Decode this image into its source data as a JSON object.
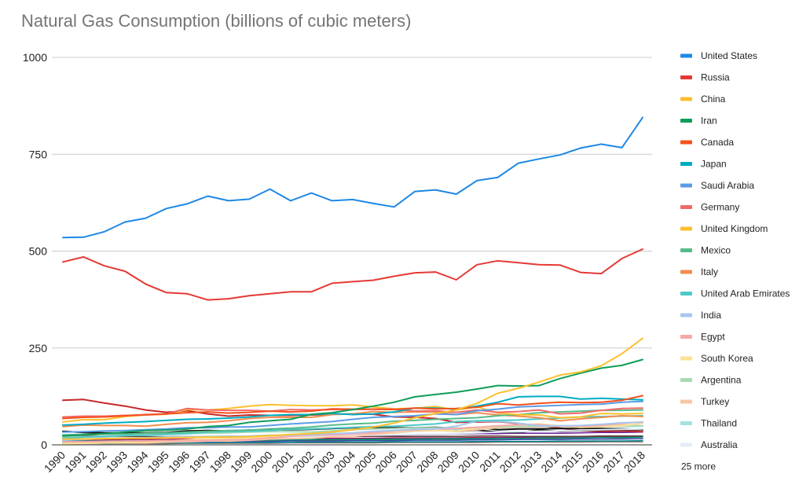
{
  "chart_data": {
    "type": "line",
    "title": "Natural Gas Consumption (billions of cubic meters)",
    "xlabel": "",
    "ylabel": "",
    "ylim": [
      0,
      1000
    ],
    "yticks": [
      "0",
      "250",
      "500",
      "750",
      "1000"
    ],
    "x": [
      "1990",
      "1991",
      "1992",
      "1993",
      "1994",
      "1995",
      "1996",
      "1997",
      "1998",
      "1999",
      "2000",
      "2001",
      "2002",
      "2003",
      "2004",
      "2005",
      "2006",
      "2007",
      "2008",
      "2009",
      "2010",
      "2011",
      "2012",
      "2013",
      "2014",
      "2015",
      "2016",
      "2017",
      "2018"
    ],
    "grid": true,
    "legend_position": "right",
    "more_label": "25 more",
    "series": [
      {
        "name": "United States",
        "color": "#1e88e5",
        "width": 2,
        "values": [
          535,
          536,
          550,
          575,
          585,
          610,
          622,
          642,
          630,
          634,
          660,
          630,
          650,
          630,
          633,
          623,
          614,
          654,
          658,
          647,
          682,
          690,
          727,
          738,
          748,
          766,
          776,
          767,
          845
        ]
      },
      {
        "name": "Russia",
        "color": "#e53935",
        "width": 2,
        "values": [
          472,
          485,
          462,
          448,
          415,
          393,
          390,
          374,
          377,
          385,
          390,
          395,
          395,
          417,
          421,
          425,
          435,
          444,
          446,
          426,
          465,
          475,
          470,
          465,
          464,
          445,
          442,
          481,
          505
        ]
      },
      {
        "name": "China",
        "color": "#fbc02d",
        "width": 2,
        "values": [
          15,
          15,
          16,
          17,
          17,
          18,
          19,
          20,
          20,
          21,
          24,
          27,
          29,
          33,
          39,
          46,
          56,
          70,
          81,
          90,
          107,
          133,
          146,
          162,
          180,
          188,
          204,
          235,
          275
        ]
      },
      {
        "name": "Iran",
        "color": "#0f9d58",
        "width": 2,
        "values": [
          23,
          26,
          29,
          33,
          37,
          38,
          41,
          47,
          50,
          58,
          62,
          66,
          79,
          83,
          91,
          100,
          110,
          124,
          130,
          136,
          144,
          153,
          152,
          153,
          171,
          185,
          198,
          205,
          220
        ]
      },
      {
        "name": "Canada",
        "color": "#f4511e",
        "width": 2,
        "values": [
          68,
          71,
          72,
          75,
          78,
          80,
          83,
          85,
          82,
          84,
          87,
          85,
          87,
          93,
          92,
          92,
          91,
          95,
          93,
          94,
          97,
          106,
          103,
          107,
          110,
          109,
          110,
          115,
          127
        ]
      },
      {
        "name": "Japan",
        "color": "#00acc1",
        "width": 2,
        "values": [
          51,
          53,
          56,
          58,
          60,
          63,
          66,
          67,
          69,
          72,
          76,
          78,
          78,
          81,
          78,
          80,
          85,
          95,
          95,
          92,
          100,
          110,
          124,
          125,
          125,
          118,
          120,
          118,
          116
        ]
      },
      {
        "name": "Saudi Arabia",
        "color": "#5c9ce6",
        "width": 2,
        "values": [
          33,
          34,
          36,
          37,
          39,
          41,
          44,
          44,
          46,
          46,
          50,
          54,
          57,
          60,
          66,
          71,
          73,
          75,
          80,
          78,
          88,
          92,
          98,
          100,
          102,
          104,
          105,
          110,
          112
        ]
      },
      {
        "name": "Germany",
        "color": "#f06a6a",
        "width": 2,
        "values": [
          72,
          74,
          74,
          76,
          77,
          80,
          94,
          90,
          89,
          89,
          87,
          91,
          90,
          91,
          91,
          92,
          92,
          87,
          88,
          84,
          90,
          84,
          86,
          90,
          80,
          82,
          89,
          94,
          95
        ]
      },
      {
        "name": "United Kingdom",
        "color": "#fbc02d",
        "width": 2,
        "values": [
          59,
          65,
          65,
          73,
          77,
          79,
          91,
          90,
          94,
          100,
          104,
          102,
          101,
          101,
          103,
          98,
          93,
          95,
          99,
          90,
          98,
          82,
          78,
          77,
          70,
          72,
          81,
          80,
          81
        ]
      },
      {
        "name": "Mexico",
        "color": "#57bb8a",
        "width": 2,
        "values": [
          26,
          27,
          28,
          28,
          30,
          31,
          33,
          35,
          37,
          38,
          41,
          43,
          46,
          51,
          54,
          56,
          61,
          63,
          66,
          68,
          70,
          75,
          78,
          83,
          85,
          87,
          89,
          89,
          90
        ]
      },
      {
        "name": "Italy",
        "color": "#f18d4e",
        "width": 2,
        "values": [
          47,
          51,
          50,
          50,
          48,
          53,
          57,
          58,
          62,
          68,
          71,
          71,
          71,
          78,
          80,
          86,
          84,
          85,
          85,
          78,
          83,
          77,
          74,
          70,
          62,
          67,
          71,
          75,
          73
        ]
      },
      {
        "name": "United Arab Emirates",
        "color": "#4dc9c9",
        "width": 2,
        "values": [
          17,
          20,
          22,
          24,
          25,
          27,
          29,
          33,
          34,
          35,
          37,
          40,
          41,
          43,
          45,
          47,
          48,
          51,
          54,
          60,
          62,
          63,
          64,
          67,
          69,
          72,
          73,
          74,
          75
        ]
      },
      {
        "name": "India",
        "color": "#a7c7f0",
        "width": 2,
        "values": [
          12,
          14,
          16,
          17,
          18,
          20,
          21,
          22,
          22,
          23,
          25,
          25,
          27,
          29,
          31,
          35,
          37,
          40,
          41,
          48,
          61,
          61,
          56,
          49,
          49,
          50,
          53,
          57,
          58
        ]
      },
      {
        "name": "Egypt",
        "color": "#f7a8a8",
        "width": 2,
        "values": [
          8,
          8,
          9,
          10,
          10,
          11,
          11,
          12,
          13,
          14,
          18,
          22,
          25,
          26,
          28,
          31,
          36,
          38,
          41,
          42,
          45,
          49,
          52,
          52,
          48,
          48,
          50,
          56,
          59
        ]
      },
      {
        "name": "South Korea",
        "color": "#fde293",
        "width": 2,
        "values": [
          3,
          4,
          5,
          6,
          7,
          10,
          13,
          16,
          16,
          18,
          20,
          22,
          25,
          27,
          31,
          33,
          34,
          36,
          38,
          35,
          44,
          48,
          52,
          54,
          49,
          45,
          47,
          49,
          56
        ]
      },
      {
        "name": "Argentina",
        "color": "#a8dab5",
        "width": 2,
        "values": [
          20,
          21,
          23,
          24,
          26,
          28,
          29,
          30,
          31,
          33,
          34,
          34,
          33,
          36,
          39,
          41,
          42,
          44,
          44,
          43,
          45,
          46,
          47,
          48,
          48,
          48,
          49,
          49,
          49
        ]
      },
      {
        "name": "Turkey",
        "color": "#fbc6a3",
        "width": 2,
        "values": [
          3,
          4,
          5,
          5,
          5,
          7,
          8,
          10,
          10,
          12,
          15,
          16,
          17,
          21,
          22,
          27,
          31,
          36,
          37,
          35,
          39,
          44,
          46,
          46,
          49,
          48,
          47,
          53,
          49
        ]
      },
      {
        "name": "Thailand",
        "color": "#a2e1e1",
        "width": 2,
        "values": [
          6,
          7,
          8,
          9,
          10,
          11,
          12,
          13,
          14,
          15,
          21,
          23,
          24,
          26,
          28,
          30,
          31,
          35,
          37,
          38,
          42,
          44,
          47,
          47,
          48,
          48,
          48,
          47,
          48
        ]
      },
      {
        "name": "Australia",
        "color": "#e3edfa",
        "width": 2,
        "values": [
          17,
          17,
          17,
          18,
          18,
          19,
          20,
          20,
          21,
          21,
          21,
          21,
          22,
          23,
          24,
          25,
          26,
          27,
          28,
          29,
          31,
          33,
          34,
          35,
          36,
          38,
          39,
          40,
          41
        ]
      },
      {
        "name": "",
        "color": "#111111",
        "width": 2,
        "values": [
          35,
          32,
          31,
          31,
          31,
          32,
          36,
          37,
          36,
          38,
          38,
          39,
          40,
          42,
          44,
          45,
          44,
          44,
          45,
          42,
          45,
          39,
          41,
          41,
          42,
          42,
          42,
          41,
          40
        ]
      },
      {
        "name": "",
        "color": "#222222",
        "width": 2,
        "values": [
          15,
          15,
          16,
          17,
          18,
          19,
          20,
          21,
          22,
          22,
          23,
          24,
          26,
          28,
          30,
          33,
          35,
          36,
          38,
          35,
          38,
          33,
          32,
          38,
          35,
          37,
          38,
          39,
          39
        ]
      },
      {
        "name": "",
        "color": "#c62828",
        "width": 2,
        "values": [
          115,
          117,
          108,
          100,
          90,
          84,
          88,
          80,
          74,
          77,
          76,
          76,
          77,
          79,
          80,
          79,
          72,
          71,
          68,
          58,
          59,
          60,
          55,
          50,
          43,
          37,
          35,
          36,
          34
        ]
      },
      {
        "name": "",
        "color": "#6a1b9a",
        "width": 1.5,
        "values": [
          18,
          17,
          18,
          18,
          18,
          19,
          20,
          20,
          20,
          21,
          22,
          22,
          22,
          23,
          23,
          24,
          25,
          26,
          27,
          28,
          29,
          29,
          30,
          30,
          30,
          31,
          32,
          32,
          33
        ]
      },
      {
        "name": "",
        "color": "#00897b",
        "width": 1.5,
        "values": [
          10,
          10,
          10,
          11,
          11,
          11,
          12,
          12,
          12,
          13,
          13,
          13,
          14,
          14,
          14,
          15,
          15,
          15,
          16,
          16,
          16,
          17,
          17,
          18,
          18,
          18,
          19,
          19,
          20
        ]
      },
      {
        "name": "",
        "color": "#5d4037",
        "width": 1.5,
        "values": [
          25,
          24,
          23,
          22,
          21,
          21,
          22,
          22,
          21,
          21,
          21,
          21,
          22,
          22,
          22,
          22,
          22,
          22,
          22,
          22,
          23,
          23,
          22,
          22,
          22,
          22,
          23,
          23,
          23
        ]
      },
      {
        "name": "",
        "color": "#3949ab",
        "width": 1.5,
        "values": [
          6,
          6,
          7,
          7,
          7,
          8,
          8,
          8,
          9,
          9,
          9,
          10,
          10,
          10,
          11,
          11,
          11,
          12,
          12,
          12,
          13,
          13,
          14,
          14,
          14,
          15,
          15,
          15,
          16
        ]
      },
      {
        "name": "",
        "color": "#ad1457",
        "width": 1.5,
        "values": [
          13,
          13,
          13,
          14,
          14,
          14,
          15,
          15,
          15,
          15,
          16,
          16,
          16,
          17,
          17,
          17,
          18,
          18,
          18,
          18,
          19,
          19,
          19,
          20,
          20,
          20,
          20,
          21,
          21
        ]
      },
      {
        "name": "",
        "color": "#558b2f",
        "width": 1.5,
        "values": [
          9,
          9,
          9,
          10,
          10,
          10,
          10,
          11,
          11,
          11,
          11,
          12,
          12,
          12,
          12,
          13,
          13,
          13,
          13,
          14,
          14,
          14,
          14,
          15,
          15,
          15,
          15,
          16,
          16
        ]
      },
      {
        "name": "",
        "color": "#00838f",
        "width": 1.5,
        "values": [
          4,
          4,
          4,
          4,
          5,
          5,
          5,
          5,
          6,
          6,
          6,
          6,
          7,
          7,
          7,
          7,
          8,
          8,
          8,
          8,
          9,
          9,
          9,
          9,
          10,
          10,
          10,
          10,
          11
        ]
      },
      {
        "name": "",
        "color": "#8d6e63",
        "width": 1.5,
        "values": [
          3,
          3,
          3,
          3,
          3,
          3,
          4,
          4,
          4,
          4,
          4,
          5,
          5,
          5,
          5,
          5,
          6,
          6,
          6,
          6,
          6,
          7,
          7,
          7,
          7,
          7,
          8,
          8,
          8
        ]
      }
    ]
  }
}
